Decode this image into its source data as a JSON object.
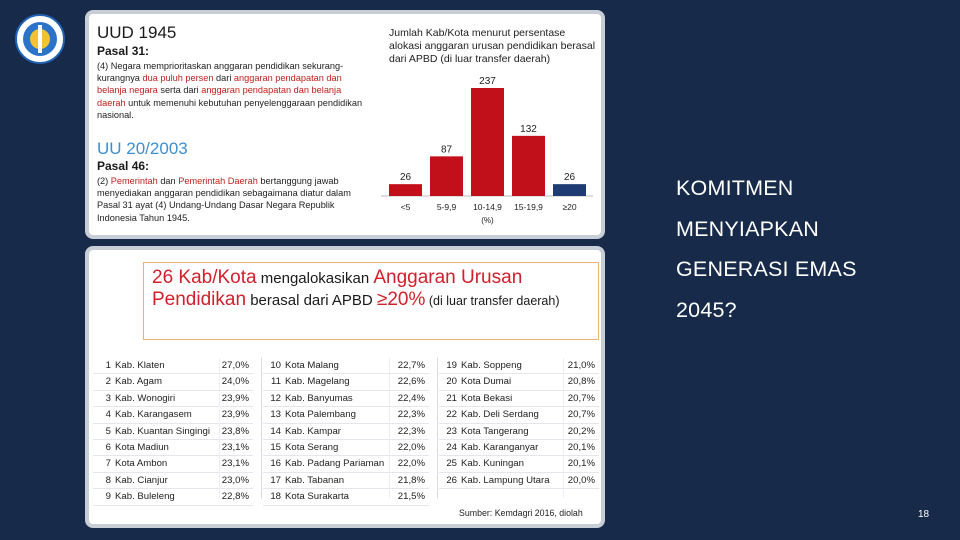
{
  "slide": {
    "page_number": "18",
    "side_text": [
      "KOMITMEN",
      "MENYIAPKAN",
      "GENERASI EMAS",
      "2045?"
    ]
  },
  "top_panel": {
    "uud_title": "UUD 1945",
    "uud_pasal": "Pasal 31:",
    "uud_text_1": "(4)  Negara memprioritaskan anggaran pendidikan sekurang-kurangnya ",
    "uud_text_red_1": "dua puluh persen",
    "uud_text_2": " dari ",
    "uud_text_red_2": "anggaran pendapatan dan belanja negara",
    "uud_text_3": " serta dari ",
    "uud_text_red_3": "anggaran pendapatan dan belanja daerah",
    "uud_text_4": " untuk memenuhi kebutuhan penyelenggaraan pendidikan nasional.",
    "uu_title": "UU 20/2003",
    "uu_pasal": "Pasal 46:",
    "uu_text_1": "(2)  ",
    "uu_text_red_1": "Pemerintah",
    "uu_text_2": " dan ",
    "uu_text_red_2": "Pemerintah Daerah",
    "uu_text_3": " bertanggung jawab menyediakan anggaran pendidikan sebagaimana diatur dalam Pasal 31 ayat (4) Undang-Undang Dasar Negara Republik Indonesia Tahun 1945."
  },
  "chart_data": {
    "type": "bar",
    "title": "Jumlah Kab/Kota menurut persentase alokasi anggaran urusan pendidikan berasal dari APBD (di luar transfer daerah)",
    "categories": [
      "<5",
      "5-9,9",
      "10-14,9",
      "15-19,9",
      "≥20"
    ],
    "values": [
      26,
      87,
      237,
      132,
      26
    ],
    "value_labels": [
      "26",
      "87",
      "237",
      "132",
      "26"
    ],
    "xlabel": "(%)",
    "ylabel": "",
    "ylim": [
      0,
      237
    ],
    "colors": [
      "#c2101b",
      "#c2101b",
      "#c2101b",
      "#c2101b",
      "#1f3b73"
    ],
    "grid": false
  },
  "bottom_panel": {
    "headline": {
      "red_1": "26 Kab/Kota",
      "text_1": " mengalokasikan ",
      "red_2": "Anggaran Urusan Pendidikan",
      "text_2": " berasal dari APBD ",
      "red_3": "≥20%",
      "text_3": " (di luar transfer daerah)"
    },
    "table": [
      [
        {
          "no": "1",
          "name": "Kab. Klaten",
          "pct": "27,0%"
        },
        {
          "no": "2",
          "name": "Kab. Agam",
          "pct": "24,0%"
        },
        {
          "no": "3",
          "name": "Kab. Wonogiri",
          "pct": "23,9%"
        },
        {
          "no": "4",
          "name": "Kab. Karangasem",
          "pct": "23,9%"
        },
        {
          "no": "5",
          "name": "Kab. Kuantan Singingi",
          "pct": "23,8%"
        },
        {
          "no": "6",
          "name": "Kota Madiun",
          "pct": "23,1%"
        },
        {
          "no": "7",
          "name": "Kota Ambon",
          "pct": "23,1%"
        },
        {
          "no": "8",
          "name": "Kab. Cianjur",
          "pct": "23,0%"
        },
        {
          "no": "9",
          "name": "Kab. Buleleng",
          "pct": "22,8%"
        }
      ],
      [
        {
          "no": "10",
          "name": "Kota Malang",
          "pct": "22,7%"
        },
        {
          "no": "11",
          "name": "Kab. Magelang",
          "pct": "22,6%"
        },
        {
          "no": "12",
          "name": "Kab. Banyumas",
          "pct": "22,4%"
        },
        {
          "no": "13",
          "name": "Kota Palembang",
          "pct": "22,3%"
        },
        {
          "no": "14",
          "name": "Kab. Kampar",
          "pct": "22,3%"
        },
        {
          "no": "15",
          "name": "Kota Serang",
          "pct": "22,0%"
        },
        {
          "no": "16",
          "name": "Kab. Padang Pariaman",
          "pct": "22,0%"
        },
        {
          "no": "17",
          "name": "Kab. Tabanan",
          "pct": "21,8%"
        },
        {
          "no": "18",
          "name": "Kota Surakarta",
          "pct": "21,5%"
        }
      ],
      [
        {
          "no": "19",
          "name": "Kab. Soppeng",
          "pct": "21,0%"
        },
        {
          "no": "20",
          "name": "Kota Dumai",
          "pct": "20,8%"
        },
        {
          "no": "21",
          "name": "Kota Bekasi",
          "pct": "20,7%"
        },
        {
          "no": "22",
          "name": "Kab. Deli Serdang",
          "pct": "20,7%"
        },
        {
          "no": "23",
          "name": "Kota Tangerang",
          "pct": "20,2%"
        },
        {
          "no": "24",
          "name": "Kab. Karanganyar",
          "pct": "20,1%"
        },
        {
          "no": "25",
          "name": "Kab. Kuningan",
          "pct": "20,1%"
        },
        {
          "no": "26",
          "name": "Kab. Lampung Utara",
          "pct": "20,0%"
        }
      ]
    ],
    "source": "Sumber: Kemdagri 2016, diolah"
  }
}
